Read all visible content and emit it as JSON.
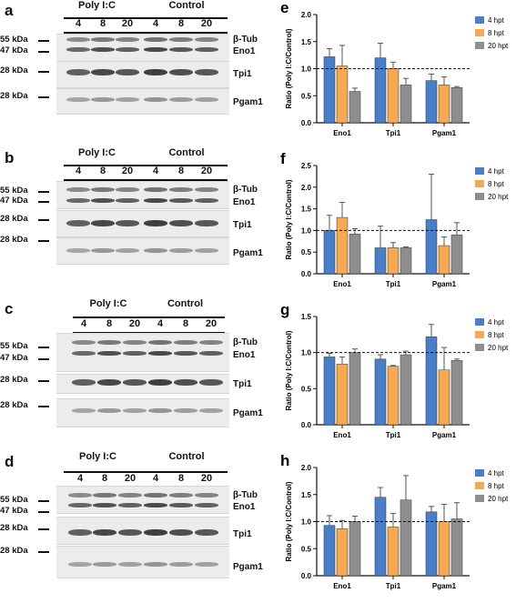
{
  "colors": {
    "h4": "#4a7ec7",
    "h8": "#f5a953",
    "h20": "#8e8e8e"
  },
  "blots": [
    {
      "letter": "a",
      "group1": "Poly I:C",
      "group2": "Control",
      "lanes": [
        "4",
        "8",
        "20",
        "4",
        "8",
        "20"
      ],
      "markers": [
        "55 kDa",
        "47 kDa",
        "28 kDa",
        "28 kDa"
      ],
      "proteins": [
        "β-Tub",
        "Eno1",
        "Tpi1",
        "Pgam1"
      ]
    },
    {
      "letter": "b",
      "group1": "Poly I:C",
      "group2": "Control",
      "lanes": [
        "4",
        "8",
        "20",
        "4",
        "8",
        "20"
      ],
      "markers": [
        "55 kDa",
        "47 kDa",
        "28 kDa",
        "28 kDa"
      ],
      "proteins": [
        "β-Tub",
        "Eno1",
        "Tpi1",
        "Pgam1"
      ]
    },
    {
      "letter": "c",
      "group1": "Poly I:C",
      "group2": "Control",
      "lanes": [
        "4",
        "8",
        "20",
        "4",
        "8",
        "20"
      ],
      "markers": [
        "55 kDa",
        "47 kDa",
        "28 kDa",
        "28 kDa"
      ],
      "proteins": [
        "β-Tub",
        "Eno1",
        "Tpi1",
        "Pgam1"
      ]
    },
    {
      "letter": "d",
      "group1": "Poly I:C",
      "group2": "Control",
      "lanes": [
        "4",
        "8",
        "20",
        "4",
        "8",
        "20"
      ],
      "markers": [
        "55 kDa",
        "47 kDa",
        "28 kDa",
        "28 kDa"
      ],
      "proteins": [
        "β-Tub",
        "Eno1",
        "Tpi1",
        "Pgam1"
      ]
    }
  ],
  "chart_data": [
    {
      "letter": "e",
      "type": "bar",
      "ylabel": "Ratio (Poly I:C/Control)",
      "ylim": [
        0,
        2.0
      ],
      "yticks": [
        "0.0",
        "0.5",
        "1.0",
        "1.5",
        "2.0"
      ],
      "categories": [
        "Eno1",
        "Tpi1",
        "Pgam1"
      ],
      "reference_line": 1.0,
      "legend": "top-right",
      "series": [
        {
          "name": "4 hpt",
          "values": [
            1.22,
            1.2,
            0.78
          ],
          "errors": [
            0.15,
            0.27,
            0.12
          ]
        },
        {
          "name": "8 hpt",
          "values": [
            1.05,
            1.0,
            0.7
          ],
          "errors": [
            0.38,
            0.12,
            0.15
          ]
        },
        {
          "name": "20 hpt",
          "values": [
            0.58,
            0.7,
            0.65
          ],
          "errors": [
            0.06,
            0.12,
            0.02
          ]
        }
      ]
    },
    {
      "letter": "f",
      "type": "bar",
      "ylabel": "Ratio (Poly I:C/Control)",
      "ylim": [
        0,
        2.5
      ],
      "yticks": [
        "0.0",
        "0.5",
        "1.0",
        "1.5",
        "2.0",
        "2.5"
      ],
      "categories": [
        "Eno1",
        "Tpi1",
        "Pgam1"
      ],
      "reference_line": 1.0,
      "legend": "top-right",
      "series": [
        {
          "name": "4 hpt",
          "values": [
            1.0,
            0.6,
            1.25
          ],
          "errors": [
            0.35,
            0.5,
            1.05
          ]
        },
        {
          "name": "8 hpt",
          "values": [
            1.3,
            0.6,
            0.65
          ],
          "errors": [
            0.35,
            0.12,
            0.2
          ]
        },
        {
          "name": "20 hpt",
          "values": [
            0.92,
            0.6,
            0.9
          ],
          "errors": [
            0.12,
            0.02,
            0.28
          ]
        }
      ]
    },
    {
      "letter": "g",
      "type": "bar",
      "ylabel": "Ratio (Poly I:C/Control)",
      "ylim": [
        0,
        1.5
      ],
      "yticks": [
        "0.0",
        "0.5",
        "1.0",
        "1.5"
      ],
      "categories": [
        "Eno1",
        "Tpi1",
        "Pgam1"
      ],
      "reference_line": 1.0,
      "legend": "top-right",
      "series": [
        {
          "name": "4 hpt",
          "values": [
            0.94,
            0.91,
            1.22
          ],
          "errors": [
            0.05,
            0.06,
            0.17
          ]
        },
        {
          "name": "8 hpt",
          "values": [
            0.84,
            0.81,
            0.76
          ],
          "errors": [
            0.1,
            0.01,
            0.31
          ]
        },
        {
          "name": "20 hpt",
          "values": [
            1.0,
            0.97,
            0.89
          ],
          "errors": [
            0.05,
            0.05,
            0.02
          ]
        }
      ]
    },
    {
      "letter": "h",
      "type": "bar",
      "ylabel": "Ratio (Poly I:C/Control)",
      "ylim": [
        0,
        2.0
      ],
      "yticks": [
        "0.0",
        "0.5",
        "1.0",
        "1.5",
        "2.0"
      ],
      "categories": [
        "Eno1",
        "Tpi1",
        "Pgam1"
      ],
      "reference_line": 1.0,
      "legend": "top-right",
      "series": [
        {
          "name": "4 hpt",
          "values": [
            0.93,
            1.45,
            1.18
          ],
          "errors": [
            0.18,
            0.18,
            0.1
          ]
        },
        {
          "name": "8 hpt",
          "values": [
            0.87,
            0.9,
            1.0
          ],
          "errors": [
            0.15,
            0.25,
            0.32
          ]
        },
        {
          "name": "20 hpt",
          "values": [
            1.0,
            1.4,
            1.05
          ],
          "errors": [
            0.1,
            0.45,
            0.3
          ]
        }
      ]
    }
  ]
}
